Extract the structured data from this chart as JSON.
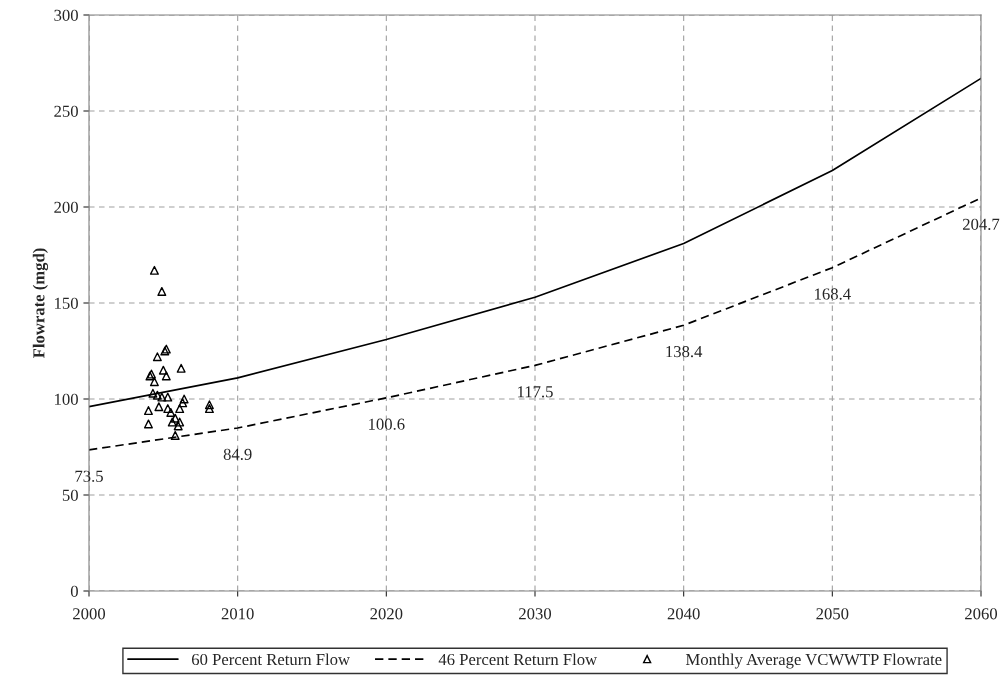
{
  "chart_data": {
    "type": "line",
    "ylabel": "Flowrate (mgd)",
    "xlim": [
      2000,
      2060
    ],
    "xticks": [
      2000,
      2010,
      2020,
      2030,
      2040,
      2050,
      2060
    ],
    "ylim": [
      0,
      300
    ],
    "yticks": [
      0,
      50,
      100,
      150,
      200,
      250,
      300
    ],
    "grid": true,
    "legend": "bottom",
    "series": [
      {
        "name": "60 Percent Return Flow",
        "color": "#000000",
        "line_style": "solid",
        "x": [
          2000,
          2010,
          2020,
          2030,
          2040,
          2050,
          2060
        ],
        "values": [
          96,
          111,
          131,
          153,
          181,
          219,
          267
        ]
      },
      {
        "name": "46 Percent Return Flow",
        "color": "#000000",
        "line_style": "dashed",
        "x": [
          2000,
          2010,
          2020,
          2030,
          2040,
          2050,
          2060
        ],
        "values": [
          73.5,
          84.9,
          100.6,
          117.5,
          138.4,
          168.4,
          204.7
        ],
        "value_labels": [
          "73.5",
          "84.9",
          "100.6",
          "117.5",
          "138.4",
          "168.4",
          "204.7"
        ]
      },
      {
        "name": "Monthly Average VCWWTP Flowrate",
        "type": "scatter",
        "color": "#000000",
        "marker": "triangle",
        "x": [
          2004.4,
          2004.9,
          2005.1,
          2005.2,
          2004.6,
          2004.2,
          2004.1,
          2005.0,
          2005.2,
          2006.2,
          2004.4,
          2004.6,
          2004.3,
          2004.9,
          2005.3,
          2004.0,
          2004.7,
          2005.3,
          2005.5,
          2005.8,
          2005.6,
          2006.0,
          2006.1,
          2006.3,
          2006.1,
          2004.0,
          2005.8,
          2008.1,
          2008.1,
          2006.4
        ],
        "values": [
          167,
          156,
          125,
          126,
          122,
          113,
          112,
          115,
          112,
          116,
          109,
          102,
          103,
          101,
          101,
          94,
          96,
          95,
          93,
          90,
          88,
          86,
          88,
          98,
          95,
          87,
          81,
          97,
          95,
          100
        ]
      }
    ]
  }
}
